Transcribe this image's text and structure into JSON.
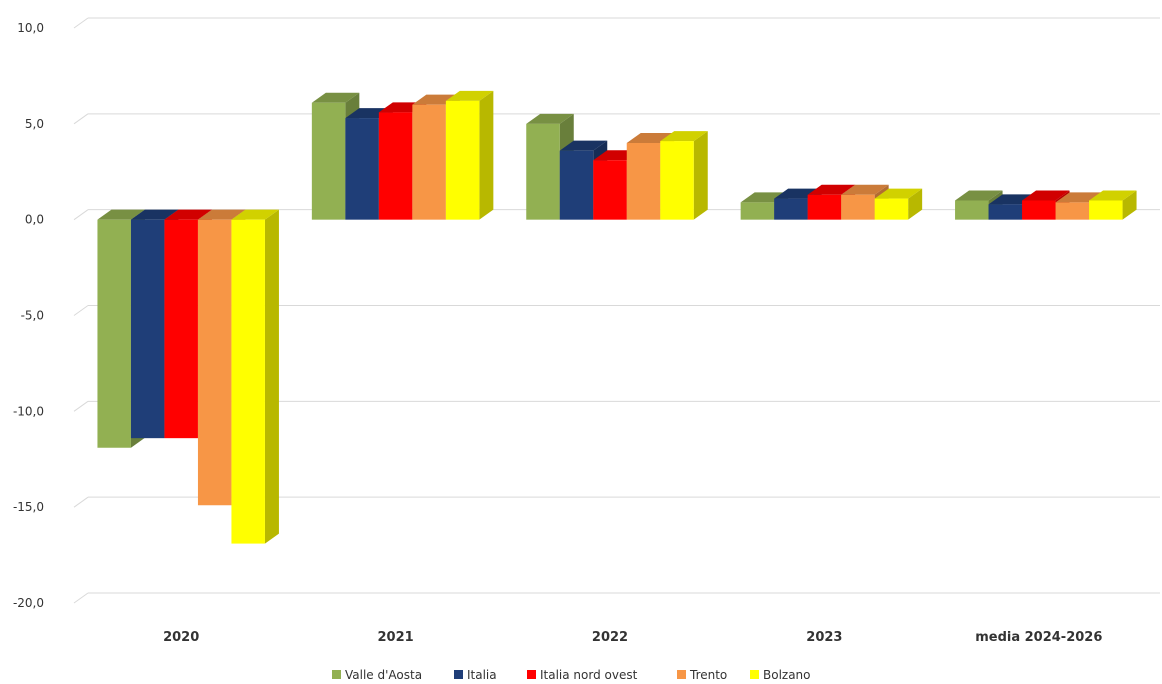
{
  "chart_data": {
    "type": "bar",
    "categories": [
      "2020",
      "2021",
      "2022",
      "2023",
      "media 2024-2026"
    ],
    "series": [
      {
        "name": "Valle d'Aosta",
        "color": "#92B052",
        "values": [
          -11.9,
          6.1,
          5.0,
          0.9,
          1.0
        ]
      },
      {
        "name": "Italia",
        "color": "#1F3E78",
        "values": [
          -11.4,
          5.3,
          3.6,
          1.1,
          0.8
        ]
      },
      {
        "name": "Italia nord ovest",
        "color": "#FF0000",
        "values": [
          -11.4,
          5.6,
          3.1,
          1.3,
          1.0
        ]
      },
      {
        "name": "Trento",
        "color": "#F79646",
        "values": [
          -14.9,
          6.0,
          4.0,
          1.3,
          0.9
        ]
      },
      {
        "name": "Bolzano",
        "color": "#FFFF00",
        "values": [
          -16.9,
          6.2,
          4.1,
          1.1,
          1.0
        ]
      }
    ],
    "y_ticks": [
      "10,0",
      "5,0",
      "0,0",
      "-5,0",
      "-10,0",
      "-15,0",
      "-20,0"
    ],
    "ylim": [
      -20,
      10
    ],
    "grid": true,
    "legend_position": "bottom",
    "style": "3d-clustered-bar"
  }
}
